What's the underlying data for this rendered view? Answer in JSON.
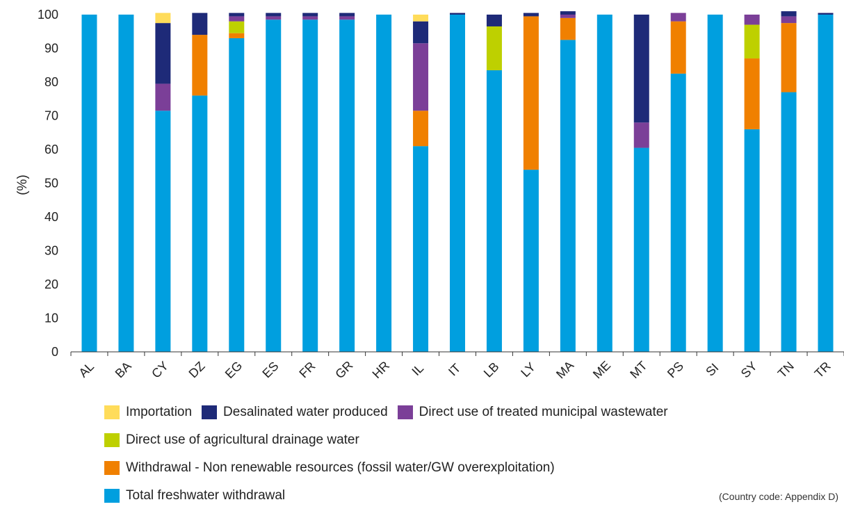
{
  "chart_data": {
    "type": "bar",
    "stacked": true,
    "title": "",
    "xlabel": "",
    "ylabel": "(%)",
    "ylim": [
      0,
      100
    ],
    "yticks": [
      "0",
      "10",
      "20",
      "30",
      "40",
      "50",
      "60",
      "70",
      "80",
      "90",
      "100"
    ],
    "grid": false,
    "legend_position": "bottom",
    "categories": [
      "AL",
      "BA",
      "CY",
      "DZ",
      "EG",
      "ES",
      "FR",
      "GR",
      "HR",
      "IL",
      "IT",
      "LB",
      "LY",
      "MA",
      "ME",
      "MT",
      "PS",
      "SI",
      "SY",
      "TN",
      "TR"
    ],
    "series": [
      {
        "name": "Total freshwater withdrawal",
        "color": "#009FDF",
        "values": [
          100,
          100,
          71.5,
          76,
          93,
          98.5,
          98.5,
          98.5,
          100,
          61,
          100,
          83.5,
          54,
          92.5,
          100,
          60.5,
          82.5,
          100,
          66,
          77,
          100
        ]
      },
      {
        "name": "Withdrawal - Non renewable resources (fossil water/GW overexploitation)",
        "color": "#F08000",
        "values": [
          0,
          0,
          0,
          18,
          1.5,
          0,
          0,
          0,
          0,
          10.5,
          0,
          0,
          45.5,
          6.5,
          0,
          0,
          15.5,
          0,
          21,
          20.5,
          0
        ]
      },
      {
        "name": "Direct use of agricultural drainage water",
        "color": "#BED000",
        "values": [
          0,
          0,
          0,
          0,
          3.5,
          0,
          0,
          0,
          0,
          0,
          0,
          13,
          0,
          0,
          0,
          0,
          0,
          0,
          10,
          0,
          0
        ]
      },
      {
        "name": "Direct use of treated municipal wastewater",
        "color": "#7B3F98",
        "values": [
          0,
          0,
          8,
          0,
          1.5,
          1,
          1,
          1,
          0,
          20,
          0,
          0,
          0,
          1,
          0,
          7.5,
          2.5,
          0,
          3,
          2,
          0
        ]
      },
      {
        "name": "Desalinated water produced",
        "color": "#1E2A78",
        "values": [
          0,
          0,
          18,
          6.5,
          1,
          1,
          1,
          1,
          0,
          6.5,
          0.5,
          3.5,
          1,
          1,
          0,
          32,
          0,
          0,
          0,
          1.5,
          0.5
        ]
      },
      {
        "name": "Importation",
        "color": "#FFDC5A",
        "values": [
          0,
          0,
          3,
          0,
          0,
          0,
          0,
          0,
          0,
          2,
          0,
          0,
          0,
          0,
          0,
          0,
          0,
          0,
          0,
          0,
          0
        ]
      }
    ]
  },
  "legend": {
    "items": [
      {
        "label": "Importation",
        "color": "#FFDC5A"
      },
      {
        "label": "Desalinated water produced",
        "color": "#1E2A78"
      },
      {
        "label": "Direct use of treated municipal wastewater",
        "color": "#7B3F98"
      },
      {
        "label": "Direct use of agricultural drainage water",
        "color": "#BED000"
      },
      {
        "label": "Withdrawal - Non renewable resources (fossil water/GW overexploitation)",
        "color": "#F08000"
      },
      {
        "label": "Total freshwater withdrawal",
        "color": "#009FDF"
      }
    ]
  },
  "note": "(Country code: Appendix D)"
}
